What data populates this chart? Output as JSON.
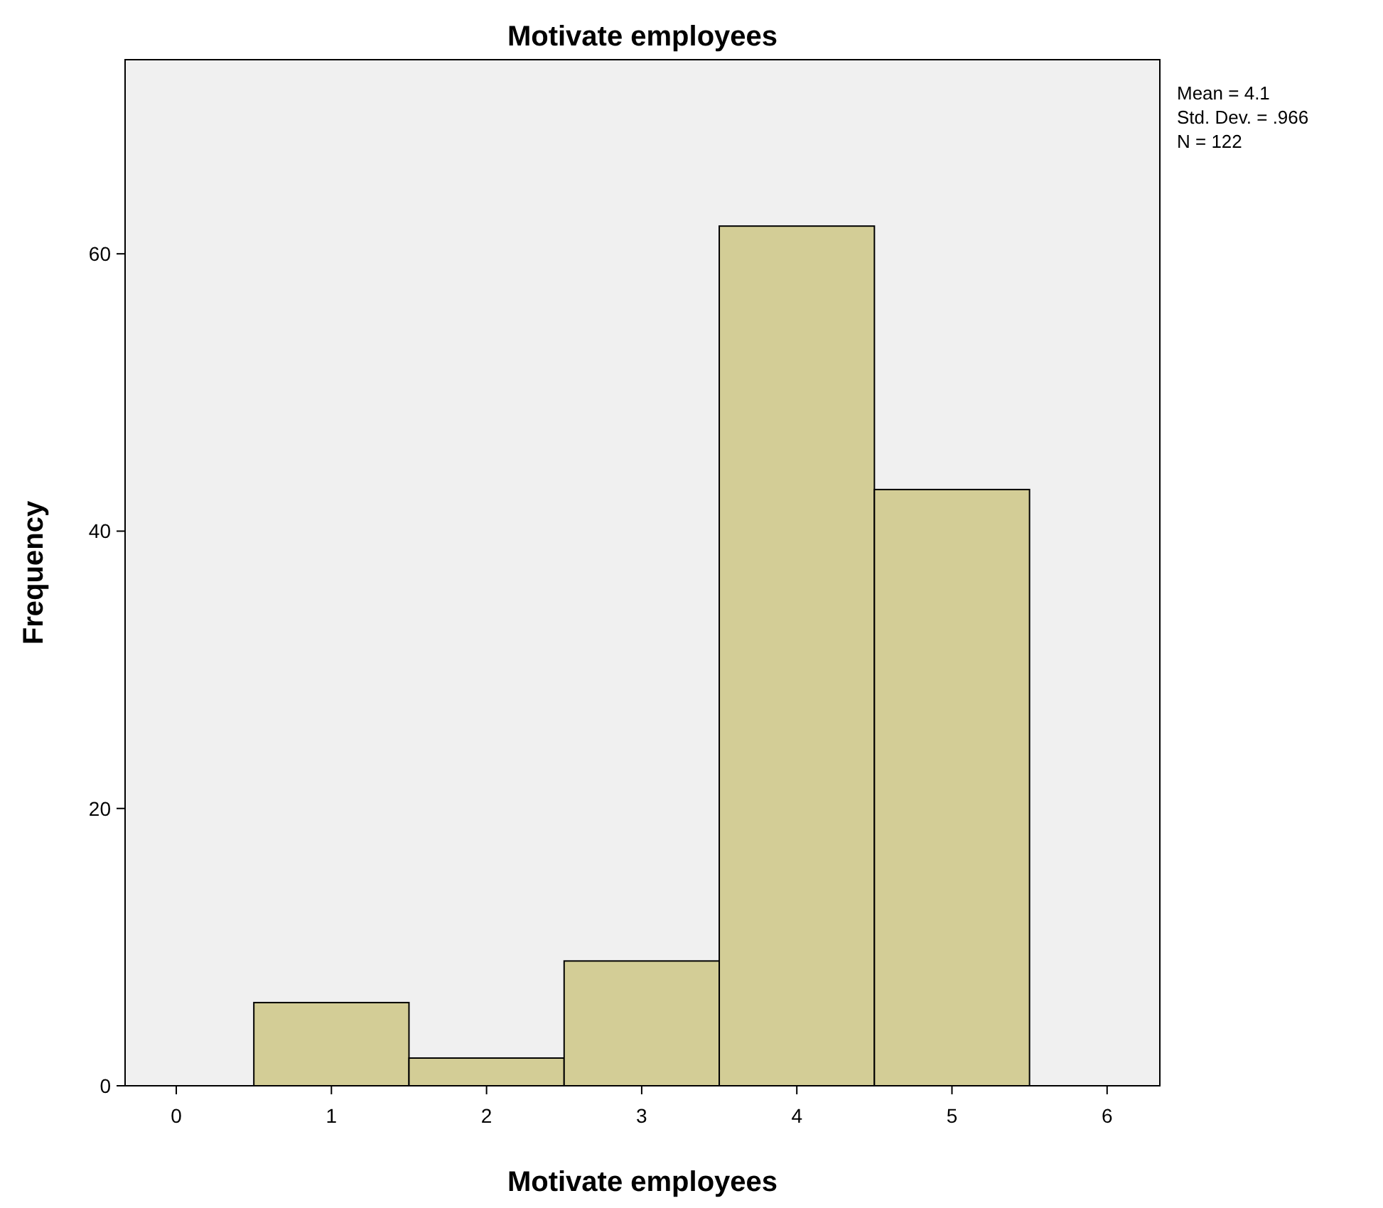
{
  "chart_data": {
    "type": "histogram",
    "title": "Motivate employees",
    "xlabel": "Motivate employees",
    "ylabel": "Frequency",
    "bins": [
      0.5,
      1.5,
      2.5,
      3.5,
      4.5,
      5.5
    ],
    "values": [
      6,
      2,
      9,
      62,
      43
    ],
    "color": "#d3cd96",
    "xlim": [
      -0.33,
      6.34
    ],
    "xticks": [
      0,
      1,
      2,
      3,
      4,
      5,
      6
    ],
    "ylim": [
      0,
      74
    ],
    "yticks": [
      0,
      20,
      40,
      60
    ],
    "grid": false,
    "annotations": [
      "Mean = 4.1",
      "Std. Dev. = .966",
      "N = 122"
    ]
  }
}
